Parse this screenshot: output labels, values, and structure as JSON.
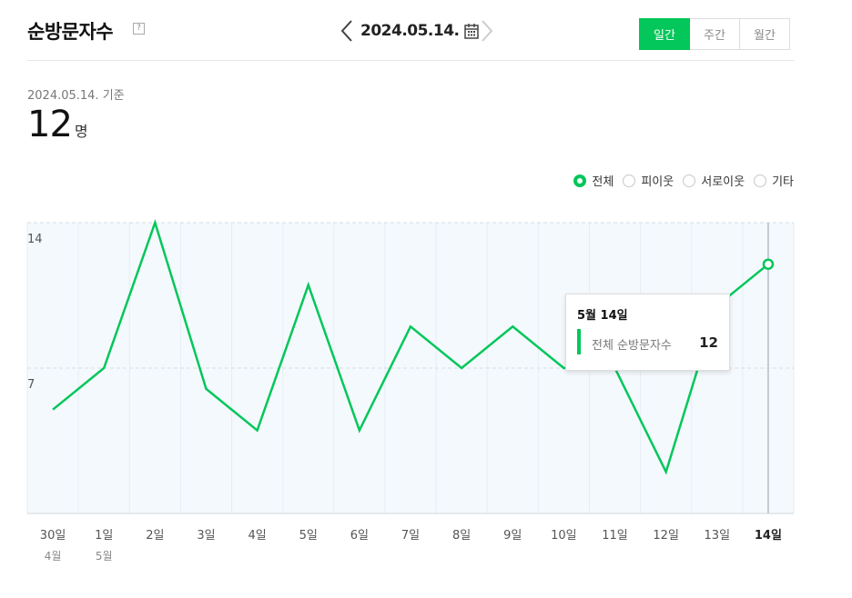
{
  "header": {
    "title": "순방문자수",
    "help_icon": "?",
    "date": "2024.05.14.",
    "periods": [
      "일간",
      "주간",
      "월간"
    ],
    "active_period": "일간"
  },
  "summary": {
    "basis": "2024.05.14. 기준",
    "value": "12",
    "unit": "명"
  },
  "legend": {
    "items": [
      "전체",
      "피이웃",
      "서로이웃",
      "기타"
    ],
    "selected": "전체"
  },
  "tooltip": {
    "title": "5월 14일",
    "label": "전체 순방문자수",
    "value": "12"
  },
  "colors": {
    "accent": "#03c75a",
    "chart_bg": "#f4f9fd"
  },
  "chart_data": {
    "type": "line",
    "categories": [
      "30일",
      "1일",
      "2일",
      "3일",
      "4일",
      "5일",
      "6일",
      "7일",
      "8일",
      "9일",
      "10일",
      "11일",
      "12일",
      "13일",
      "14일"
    ],
    "month_labels": [
      {
        "index": 0,
        "label": "4월"
      },
      {
        "index": 1,
        "label": "5월"
      }
    ],
    "series": [
      {
        "name": "전체",
        "values": [
          5,
          7,
          14,
          6,
          4,
          11,
          4,
          9,
          7,
          9,
          7,
          7,
          2,
          10,
          12
        ]
      }
    ],
    "yticks": [
      7,
      14
    ],
    "ylim": [
      0,
      14
    ],
    "highlight_index": 14,
    "grid": true
  }
}
